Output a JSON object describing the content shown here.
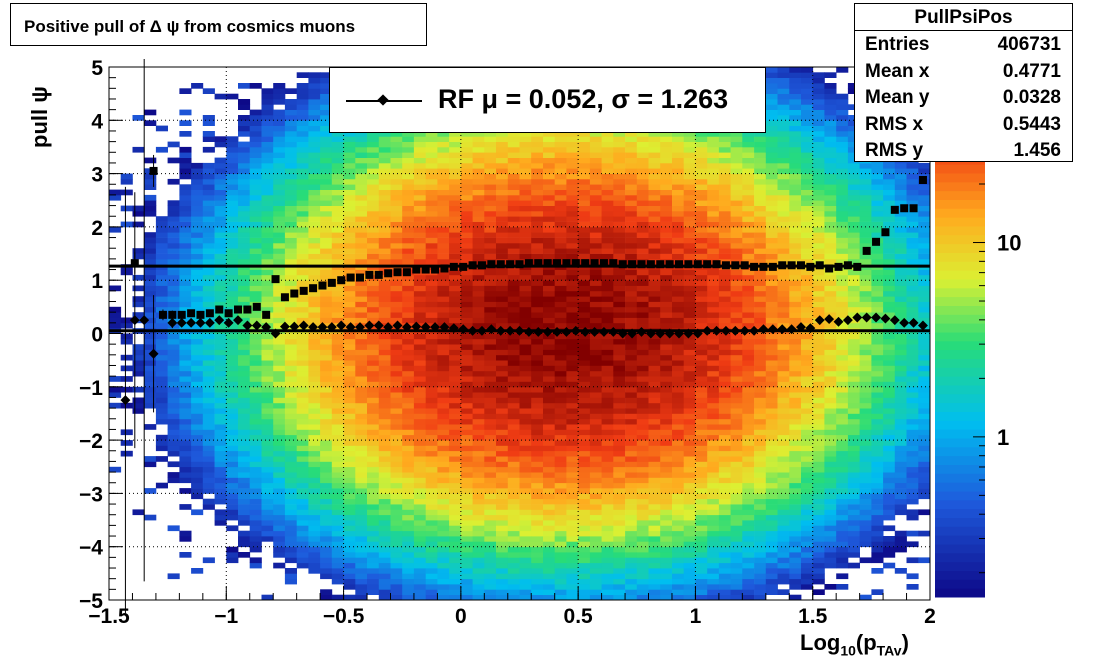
{
  "title": "Positive pull of Δ ψ from cosmics muons",
  "stats": {
    "name": "PullPsiPos",
    "rows": [
      {
        "label": "Entries",
        "value": "406731"
      },
      {
        "label": "Mean x",
        "value": "0.4771"
      },
      {
        "label": "Mean y",
        "value": "0.0328"
      },
      {
        "label": "RMS x",
        "value": "0.5443"
      },
      {
        "label": "RMS y",
        "value": "1.456"
      }
    ]
  },
  "legend": {
    "label": "RF μ =  0.052, σ =   1.263"
  },
  "axes": {
    "y_title": "pull ψ",
    "x_title_main": "Log",
    "x_title_sub": "10",
    "x_title_rest": "(p",
    "x_title_sub2": "TAv",
    "x_title_end": ")"
  },
  "chart_data": {
    "type": "heatmap",
    "xlim": [
      -1.5,
      2
    ],
    "ylim": [
      -5,
      5
    ],
    "x_ticks": [
      "−1.5",
      "−1",
      "−0.5",
      "0",
      "0.5",
      "1",
      "1.5",
      "2"
    ],
    "x_tick_values": [
      -1.5,
      -1,
      -0.5,
      0,
      0.5,
      1,
      1.5,
      2
    ],
    "y_ticks": [
      "−5",
      "−4",
      "−3",
      "−2",
      "−1",
      "0",
      "1",
      "2",
      "3",
      "4",
      "5"
    ],
    "y_tick_values": [
      -5,
      -4,
      -3,
      -2,
      -1,
      0,
      1,
      2,
      3,
      4,
      5
    ],
    "grid": true,
    "colorbar": {
      "scale": "log",
      "labels": [
        "1",
        "10"
      ],
      "label_values": [
        1,
        10
      ],
      "range": [
        0.15,
        80
      ]
    },
    "density": {
      "center_x": 0.45,
      "center_y": 0.1,
      "sigma_x": 0.55,
      "sigma_y": 1.7,
      "peak": 75
    },
    "mean_lines": [
      0.052,
      1.263
    ],
    "series": [
      {
        "marker": "diamond",
        "x": [
          -1.43,
          -1.39,
          -1.35,
          -1.31,
          -1.27,
          -1.23,
          -1.19,
          -1.15,
          -1.11,
          -1.07,
          -1.03,
          -0.99,
          -0.95,
          -0.91,
          -0.87,
          -0.83,
          -0.79,
          -0.75,
          -0.71,
          -0.67,
          -0.63,
          -0.59,
          -0.55,
          -0.51,
          -0.47,
          -0.43,
          -0.39,
          -0.35,
          -0.31,
          -0.27,
          -0.23,
          -0.19,
          -0.15,
          -0.11,
          -0.07,
          -0.03,
          0.01,
          0.05,
          0.09,
          0.13,
          0.17,
          0.21,
          0.25,
          0.29,
          0.33,
          0.37,
          0.41,
          0.45,
          0.49,
          0.53,
          0.57,
          0.61,
          0.65,
          0.69,
          0.73,
          0.77,
          0.81,
          0.85,
          0.89,
          0.93,
          0.97,
          1.01,
          1.05,
          1.09,
          1.13,
          1.17,
          1.21,
          1.25,
          1.29,
          1.33,
          1.37,
          1.41,
          1.45,
          1.49,
          1.53,
          1.57,
          1.61,
          1.65,
          1.69,
          1.73,
          1.77,
          1.81,
          1.85,
          1.89,
          1.93,
          1.97
        ],
        "y": [
          -1.25,
          0.25,
          0.25,
          -0.38,
          null,
          0.2,
          0.2,
          0.2,
          0.2,
          0.2,
          0.25,
          0.2,
          0.25,
          0.15,
          0.15,
          0.12,
          0.0,
          0.13,
          0.13,
          0.15,
          0.12,
          0.12,
          0.12,
          0.15,
          0.12,
          0.12,
          0.15,
          0.15,
          0.12,
          0.15,
          0.12,
          0.13,
          0.12,
          0.12,
          0.12,
          0.1,
          0.08,
          0.05,
          0.05,
          0.08,
          0.05,
          0.05,
          0.05,
          0.03,
          0.03,
          0.03,
          0.03,
          0.03,
          0.05,
          0.03,
          0.03,
          0.03,
          0.03,
          0.0,
          0.0,
          0.03,
          0.0,
          0.0,
          0.0,
          0.0,
          0.0,
          0.0,
          0.05,
          0.05,
          0.05,
          0.05,
          0.05,
          0.05,
          0.08,
          0.08,
          0.08,
          0.08,
          0.12,
          0.1,
          0.25,
          0.27,
          0.22,
          0.25,
          0.3,
          0.3,
          0.3,
          0.28,
          0.25,
          0.2,
          0.2,
          0.15
        ],
        "err": [
          4.0,
          2.4,
          4.9,
          1.1,
          0,
          0.1,
          0.05,
          0.05,
          0.05,
          0.05,
          0.05,
          0.05,
          0.05,
          0.03,
          0.03,
          0.03,
          0.03,
          0,
          0,
          0,
          0,
          0,
          0,
          0,
          0,
          0,
          0,
          0,
          0,
          0,
          0,
          0,
          0,
          0,
          0,
          0,
          0,
          0,
          0,
          0,
          0,
          0,
          0,
          0,
          0,
          0,
          0,
          0,
          0,
          0,
          0,
          0,
          0,
          0,
          0,
          0,
          0,
          0,
          0,
          0,
          0,
          0,
          0,
          0,
          0,
          0,
          0,
          0,
          0,
          0,
          0,
          0,
          0,
          0,
          0,
          0,
          0,
          0,
          0,
          0,
          0,
          0,
          0,
          0,
          0,
          0
        ]
      },
      {
        "marker": "square",
        "x": [
          -1.43,
          -1.39,
          -1.35,
          -1.31,
          -1.27,
          -1.23,
          -1.19,
          -1.15,
          -1.11,
          -1.07,
          -1.03,
          -0.99,
          -0.95,
          -0.91,
          -0.87,
          -0.83,
          -0.79,
          -0.75,
          -0.71,
          -0.67,
          -0.63,
          -0.59,
          -0.55,
          -0.51,
          -0.47,
          -0.43,
          -0.39,
          -0.35,
          -0.31,
          -0.27,
          -0.23,
          -0.19,
          -0.15,
          -0.11,
          -0.07,
          -0.03,
          0.01,
          0.05,
          0.09,
          0.13,
          0.17,
          0.21,
          0.25,
          0.29,
          0.33,
          0.37,
          0.41,
          0.45,
          0.49,
          0.53,
          0.57,
          0.61,
          0.65,
          0.69,
          0.73,
          0.77,
          0.81,
          0.85,
          0.89,
          0.93,
          0.97,
          1.01,
          1.05,
          1.09,
          1.13,
          1.17,
          1.21,
          1.25,
          1.29,
          1.33,
          1.37,
          1.41,
          1.45,
          1.49,
          1.53,
          1.57,
          1.61,
          1.65,
          1.69,
          1.73,
          1.77,
          1.81,
          1.85,
          1.89,
          1.93,
          1.97
        ],
        "y": [
          null,
          1.32,
          null,
          3.05,
          0.35,
          0.35,
          0.35,
          0.38,
          0.35,
          0.38,
          0.45,
          0.38,
          0.45,
          0.45,
          0.5,
          0.35,
          1.02,
          0.68,
          0.75,
          0.8,
          0.85,
          0.9,
          0.95,
          1.0,
          1.05,
          1.05,
          1.1,
          1.1,
          1.13,
          1.15,
          1.15,
          1.2,
          1.2,
          1.2,
          1.22,
          1.25,
          1.25,
          1.28,
          1.28,
          1.3,
          1.3,
          1.3,
          1.3,
          1.32,
          1.32,
          1.32,
          1.32,
          1.32,
          1.32,
          1.32,
          1.32,
          1.32,
          1.32,
          1.3,
          1.3,
          1.3,
          1.3,
          1.3,
          1.3,
          1.3,
          1.3,
          1.3,
          1.3,
          1.3,
          1.28,
          1.28,
          1.28,
          1.25,
          1.25,
          1.25,
          1.28,
          1.28,
          1.28,
          1.25,
          1.28,
          1.22,
          1.25,
          1.28,
          1.25,
          1.55,
          1.72,
          1.9,
          2.32,
          2.35,
          2.35,
          2.88
        ],
        "err": [
          0,
          0.2,
          0,
          0.3,
          0.1,
          0.08,
          0.05,
          0.05,
          0.05,
          0.05,
          0.05,
          0.05,
          0.05,
          0.03,
          0.03,
          0.03,
          0.03,
          0,
          0,
          0,
          0,
          0,
          0,
          0,
          0,
          0,
          0,
          0,
          0,
          0,
          0,
          0,
          0,
          0,
          0,
          0,
          0,
          0,
          0,
          0,
          0,
          0,
          0,
          0,
          0,
          0,
          0,
          0,
          0,
          0,
          0,
          0,
          0,
          0,
          0,
          0,
          0,
          0,
          0,
          0,
          0,
          0,
          0,
          0,
          0,
          0,
          0,
          0,
          0,
          0,
          0,
          0,
          0,
          0,
          0,
          0,
          0,
          0,
          0,
          0,
          0,
          0,
          0,
          0,
          0,
          0
        ]
      }
    ]
  }
}
